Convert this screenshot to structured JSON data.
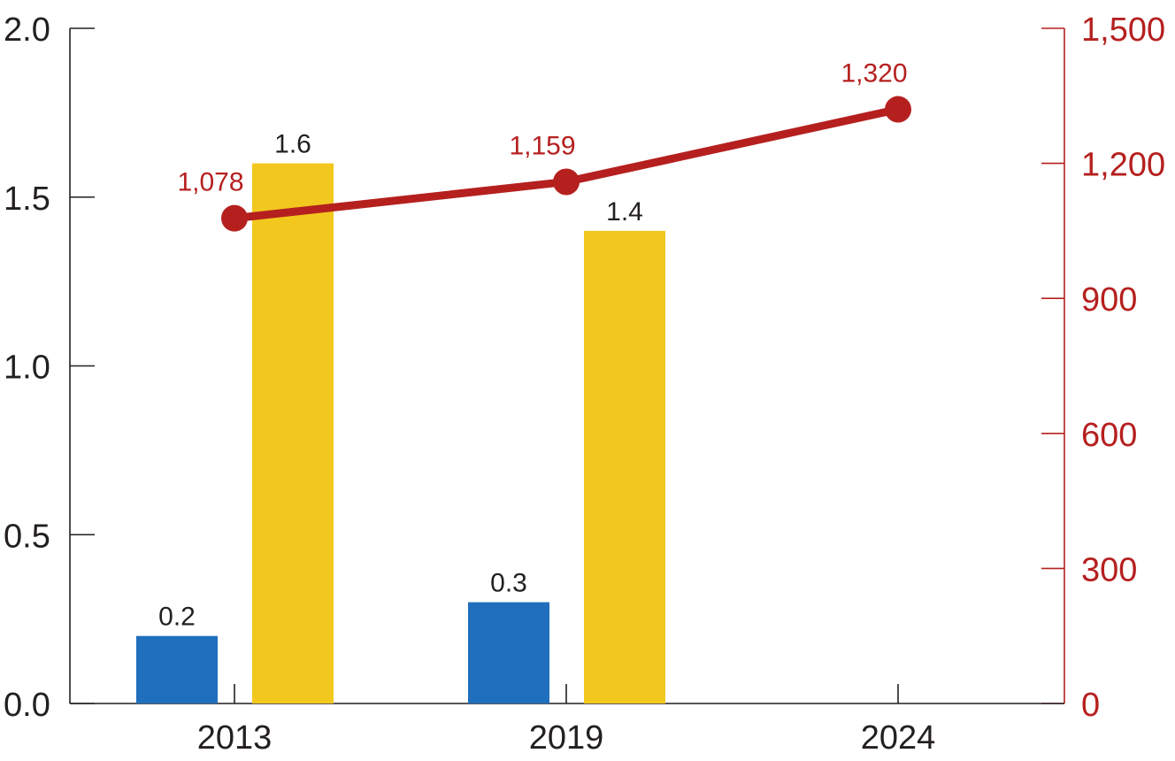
{
  "chart_data": {
    "type": "bar",
    "categories": [
      "2013",
      "2019",
      "2024"
    ],
    "series": [
      {
        "values": [
          0.2,
          0.3,
          null
        ],
        "color": "#1f6fbd",
        "axis": "left",
        "kind": "bar"
      },
      {
        "values": [
          1.6,
          1.4,
          null
        ],
        "color": "#f2c81f",
        "axis": "left",
        "kind": "bar"
      },
      {
        "values": [
          1078,
          1159,
          1320
        ],
        "color": "#b5201f",
        "axis": "right",
        "kind": "line"
      }
    ],
    "bar_labels": [
      [
        "0.2",
        "0.3",
        ""
      ],
      [
        "1.6",
        "1.4",
        ""
      ]
    ],
    "line_labels": [
      "1,078",
      "1,159",
      "1,320"
    ],
    "y_left": {
      "ylim": [
        0,
        2.0
      ],
      "ticks": [
        0,
        0.5,
        1.0,
        1.5,
        2.0
      ],
      "tick_labels": [
        "0.0",
        "0.5",
        "1.0",
        "1.5",
        "2.0"
      ]
    },
    "y_right": {
      "ylim": [
        0,
        1500
      ],
      "ticks": [
        0,
        300,
        600,
        900,
        1200,
        1500
      ],
      "tick_labels": [
        "0",
        "300",
        "600",
        "900",
        "1,200",
        "1,500"
      ]
    },
    "title": "",
    "xlabel": "",
    "ylabel": "",
    "grid": false,
    "colors": {
      "axis": "#231f20",
      "right_axis": "#b5201f"
    }
  }
}
